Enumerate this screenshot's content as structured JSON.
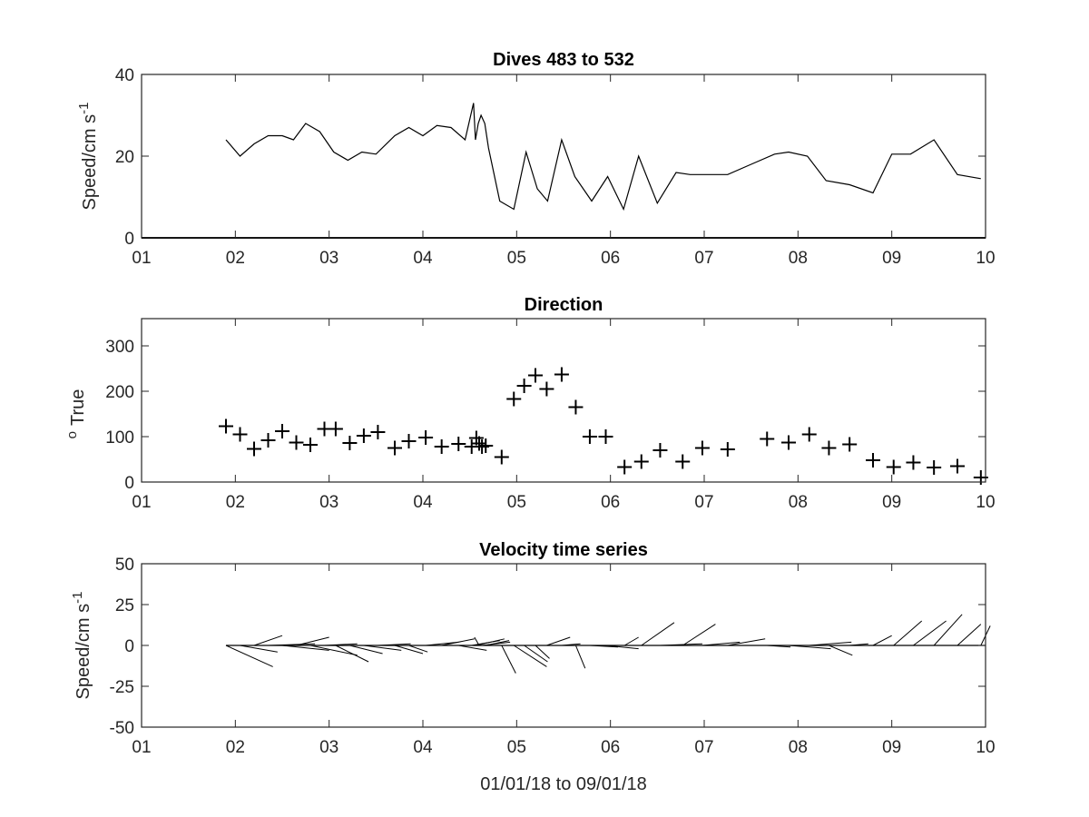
{
  "chart_data": [
    {
      "type": "line",
      "title": "Dives 483 to 532",
      "xlabel": "",
      "ylabel": "Speed/cm s",
      "ylabel_superscript": "-1",
      "xlim": [
        1,
        10
      ],
      "ylim": [
        0,
        40
      ],
      "xticks": [
        "01",
        "02",
        "03",
        "04",
        "05",
        "06",
        "07",
        "08",
        "09",
        "10"
      ],
      "yticks": [
        "0",
        "20",
        "40"
      ],
      "grid": false,
      "x": [
        1.9,
        2.05,
        2.2,
        2.35,
        2.5,
        2.62,
        2.75,
        2.9,
        3.05,
        3.2,
        3.35,
        3.5,
        3.7,
        3.85,
        4.0,
        4.15,
        4.3,
        4.45,
        4.54,
        4.56,
        4.59,
        4.62,
        4.66,
        4.7,
        4.82,
        4.97,
        5.1,
        5.22,
        5.33,
        5.48,
        5.62,
        5.8,
        5.97,
        6.14,
        6.3,
        6.5,
        6.7,
        6.85,
        7.0,
        7.25,
        7.5,
        7.75,
        7.9,
        8.1,
        8.3,
        8.55,
        8.8,
        9.0,
        9.2,
        9.45,
        9.7,
        9.95
      ],
      "y": [
        24,
        20,
        23,
        25,
        25,
        24,
        28,
        26,
        21,
        19,
        21,
        20.5,
        25,
        27,
        25,
        27.5,
        27,
        24,
        33,
        24,
        28,
        30,
        28,
        22,
        9,
        7,
        21,
        12,
        9,
        24,
        15,
        9,
        15,
        7,
        20,
        8.5,
        16,
        15.5,
        15.5,
        15.5,
        18,
        20.5,
        21,
        20,
        14,
        13,
        11,
        20.5,
        20.5,
        24,
        15.5,
        14.5
      ],
      "baseline": 0
    },
    {
      "type": "scatter",
      "title": "Direction",
      "xlabel": "",
      "ylabel": "True",
      "ylabel_prefix": "o",
      "xlim": [
        1,
        10
      ],
      "ylim": [
        0,
        360
      ],
      "xticks": [
        "01",
        "02",
        "03",
        "04",
        "05",
        "06",
        "07",
        "08",
        "09",
        "10"
      ],
      "yticks": [
        "0",
        "100",
        "200",
        "300"
      ],
      "grid": false,
      "marker": "+",
      "x": [
        1.9,
        2.05,
        2.2,
        2.35,
        2.5,
        2.65,
        2.8,
        2.95,
        3.07,
        3.22,
        3.37,
        3.52,
        3.7,
        3.85,
        4.03,
        4.2,
        4.38,
        4.52,
        4.57,
        4.6,
        4.63,
        4.67,
        4.84,
        4.97,
        5.08,
        5.2,
        5.32,
        5.48,
        5.63,
        5.78,
        5.95,
        6.15,
        6.33,
        6.53,
        6.77,
        6.98,
        7.25,
        7.67,
        7.9,
        8.12,
        8.33,
        8.55,
        8.8,
        9.02,
        9.23,
        9.45,
        9.7,
        9.95
      ],
      "y": [
        123,
        105,
        73,
        92,
        112,
        87,
        82,
        117,
        117,
        86,
        102,
        110,
        75,
        90,
        98,
        78,
        84,
        78,
        97,
        85,
        78,
        80,
        55,
        183,
        212,
        235,
        205,
        237,
        165,
        100,
        100,
        33,
        45,
        70,
        45,
        75,
        72,
        95,
        87,
        105,
        75,
        83,
        48,
        33,
        43,
        32,
        35,
        10
      ]
    },
    {
      "type": "stick",
      "title": "Velocity time series",
      "xlabel": "01/01/18 to 09/01/18",
      "ylabel": "Speed/cm s",
      "ylabel_superscript": "-1",
      "xlim": [
        1,
        10
      ],
      "ylim": [
        -50,
        50
      ],
      "xticks": [
        "01",
        "02",
        "03",
        "04",
        "05",
        "06",
        "07",
        "08",
        "09",
        "10"
      ],
      "yticks": [
        "-50",
        "-25",
        "0",
        "25",
        "50"
      ],
      "grid": false,
      "baseline": 0,
      "sticks": [
        {
          "x": 1.9,
          "u": 0.5,
          "v": -13
        },
        {
          "x": 2.05,
          "u": 0.4,
          "v": -4
        },
        {
          "x": 2.2,
          "u": 0.3,
          "v": 6
        },
        {
          "x": 2.35,
          "u": 0.5,
          "v": 1
        },
        {
          "x": 2.5,
          "u": 0.5,
          "v": -3
        },
        {
          "x": 2.65,
          "u": 0.35,
          "v": 5
        },
        {
          "x": 2.8,
          "u": 0.5,
          "v": -6
        },
        {
          "x": 2.95,
          "u": 0.35,
          "v": 1
        },
        {
          "x": 3.07,
          "u": 0.35,
          "v": -10
        },
        {
          "x": 3.22,
          "u": 0.35,
          "v": -5
        },
        {
          "x": 3.37,
          "u": 0.4,
          "v": -3
        },
        {
          "x": 3.52,
          "u": 0.35,
          "v": 1
        },
        {
          "x": 3.7,
          "u": 0.3,
          "v": -5
        },
        {
          "x": 3.85,
          "u": 0.2,
          "v": -4
        },
        {
          "x": 4.03,
          "u": 0.35,
          "v": 2
        },
        {
          "x": 4.2,
          "u": 0.35,
          "v": 4
        },
        {
          "x": 4.38,
          "u": 0.3,
          "v": -3
        },
        {
          "x": 4.52,
          "u": 0.3,
          "v": 3
        },
        {
          "x": 4.57,
          "u": 0.3,
          "v": 4
        },
        {
          "x": 4.6,
          "u": -0.05,
          "v": 5
        },
        {
          "x": 4.63,
          "u": 0.3,
          "v": 2
        },
        {
          "x": 4.67,
          "u": 0.25,
          "v": 3
        },
        {
          "x": 4.84,
          "u": 0.15,
          "v": -17
        },
        {
          "x": 4.97,
          "u": 0.35,
          "v": -13
        },
        {
          "x": 5.08,
          "u": 0.25,
          "v": -10
        },
        {
          "x": 5.2,
          "u": 0.15,
          "v": -8
        },
        {
          "x": 5.32,
          "u": 0.25,
          "v": 5
        },
        {
          "x": 5.48,
          "u": 0.2,
          "v": 1
        },
        {
          "x": 5.63,
          "u": 0.1,
          "v": -14
        },
        {
          "x": 5.78,
          "u": 0.3,
          "v": -1
        },
        {
          "x": 5.95,
          "u": 0.35,
          "v": -2
        },
        {
          "x": 6.15,
          "u": 0.15,
          "v": 5
        },
        {
          "x": 6.33,
          "u": 0.35,
          "v": 14
        },
        {
          "x": 6.53,
          "u": 0.45,
          "v": 1
        },
        {
          "x": 6.77,
          "u": 0.35,
          "v": 13
        },
        {
          "x": 6.98,
          "u": 0.4,
          "v": 2
        },
        {
          "x": 7.25,
          "u": 0.4,
          "v": 4
        },
        {
          "x": 7.67,
          "u": 0.25,
          "v": -1
        },
        {
          "x": 7.9,
          "u": 0.45,
          "v": -2
        },
        {
          "x": 8.12,
          "u": 0.45,
          "v": 2
        },
        {
          "x": 8.33,
          "u": 0.25,
          "v": -6
        },
        {
          "x": 8.55,
          "u": 0.2,
          "v": 1
        },
        {
          "x": 8.8,
          "u": 0.2,
          "v": 6
        },
        {
          "x": 9.02,
          "u": 0.3,
          "v": 15
        },
        {
          "x": 9.23,
          "u": 0.35,
          "v": 15
        },
        {
          "x": 9.45,
          "u": 0.3,
          "v": 19
        },
        {
          "x": 9.7,
          "u": 0.25,
          "v": 13
        },
        {
          "x": 9.95,
          "u": 0.1,
          "v": 12
        }
      ]
    }
  ]
}
